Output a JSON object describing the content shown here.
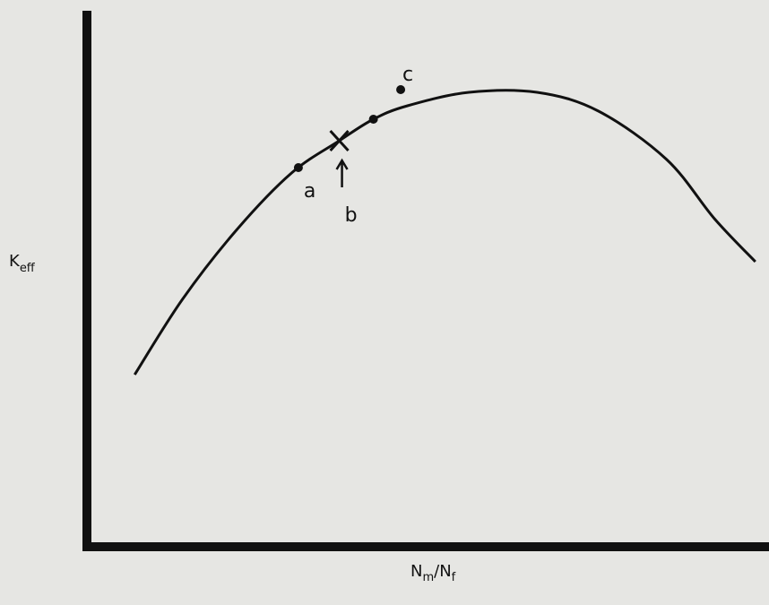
{
  "chart_data": {
    "type": "line",
    "title": "",
    "xlabel": "N_m/N_f",
    "ylabel": "K_eff",
    "xlabel_main": "N",
    "xlabel_sub1": "m",
    "xlabel_sep": "/N",
    "xlabel_sub2": "f",
    "ylabel_main": "K",
    "ylabel_sub": "eff",
    "grid": false,
    "legend": "none",
    "colors": {
      "background": "#e6e6e3",
      "ink": "#111111"
    },
    "xlim": [
      0,
      10
    ],
    "ylim": [
      0,
      10
    ],
    "curve": {
      "x": [
        0.7,
        1.4,
        2.2,
        3.0,
        3.7,
        4.2,
        4.7,
        5.6,
        6.6,
        7.5,
        8.5,
        9.2,
        9.8
      ],
      "y": [
        3.2,
        4.6,
        5.9,
        6.95,
        7.55,
        7.95,
        8.2,
        8.45,
        8.45,
        8.1,
        7.2,
        6.1,
        5.3
      ]
    },
    "points": [
      {
        "label": "a",
        "x": 3.1,
        "y": 7.05,
        "marker": "dot"
      },
      {
        "label": "b",
        "x": 3.7,
        "y": 7.55,
        "marker": "cross",
        "arrow": true
      },
      {
        "label": "c",
        "x": 4.6,
        "y": 8.5,
        "marker": "dot"
      },
      {
        "label": "",
        "x": 4.2,
        "y": 7.95,
        "marker": "dot"
      }
    ]
  }
}
